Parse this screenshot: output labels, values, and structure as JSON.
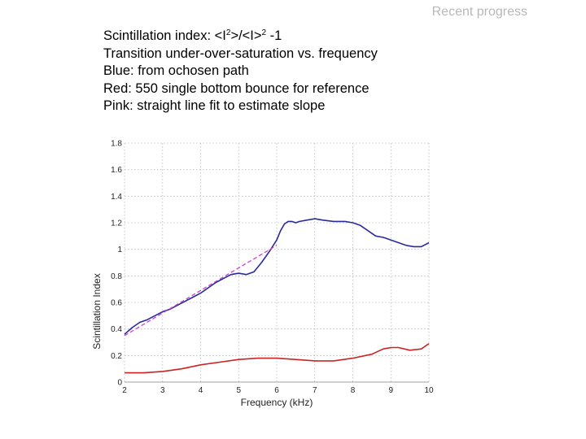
{
  "slide": {
    "title": "Recent progress",
    "lines": {
      "formula_prefix": "Scintillation index:  <I",
      "formula_sup1": "2",
      "formula_mid": ">/<I>",
      "formula_sup2": "2",
      "formula_suffix": " -1",
      "line2": "Transition under-over-saturation vs. frequency",
      "line3": "Blue: from ochosen path",
      "line4": "Red: 550 single bottom bounce for reference",
      "line5": "Pink: straight line fit to estimate slope"
    }
  },
  "chart_data": {
    "type": "line",
    "xlabel": "Frequency (kHz)",
    "ylabel": "Scintillation Index",
    "xlim": [
      2,
      10
    ],
    "ylim": [
      0,
      1.8
    ],
    "xticks": [
      "2",
      "3",
      "4",
      "5",
      "6",
      "7",
      "8",
      "9",
      "10"
    ],
    "yticks": [
      "0",
      "0.2",
      "0.4",
      "0.6",
      "0.8",
      "1",
      "1.2",
      "1.4",
      "1.6",
      "1.8"
    ],
    "grid": true,
    "series": [
      {
        "color": "#2a2a9e",
        "x": [
          2.0,
          2.2,
          2.4,
          2.6,
          2.8,
          3.0,
          3.2,
          3.4,
          3.6,
          3.8,
          4.0,
          4.2,
          4.4,
          4.6,
          4.8,
          5.0,
          5.2,
          5.4,
          5.6,
          5.8,
          6.0,
          6.1,
          6.2,
          6.3,
          6.4,
          6.5,
          6.6,
          6.8,
          7.0,
          7.2,
          7.5,
          7.8,
          8.0,
          8.2,
          8.4,
          8.6,
          8.8,
          9.0,
          9.2,
          9.4,
          9.6,
          9.8,
          10.0
        ],
        "y": [
          0.36,
          0.41,
          0.45,
          0.47,
          0.5,
          0.53,
          0.55,
          0.58,
          0.61,
          0.64,
          0.67,
          0.71,
          0.75,
          0.78,
          0.81,
          0.82,
          0.81,
          0.83,
          0.9,
          0.98,
          1.07,
          1.14,
          1.19,
          1.21,
          1.21,
          1.2,
          1.21,
          1.22,
          1.23,
          1.22,
          1.21,
          1.21,
          1.2,
          1.18,
          1.14,
          1.1,
          1.09,
          1.07,
          1.05,
          1.03,
          1.02,
          1.02,
          1.05
        ]
      },
      {
        "color": "#cc2222",
        "x": [
          2.0,
          2.5,
          3.0,
          3.5,
          4.0,
          4.5,
          5.0,
          5.5,
          6.0,
          6.5,
          7.0,
          7.5,
          8.0,
          8.5,
          8.8,
          9.0,
          9.2,
          9.5,
          9.8,
          10.0
        ],
        "y": [
          0.07,
          0.07,
          0.08,
          0.1,
          0.13,
          0.15,
          0.17,
          0.18,
          0.18,
          0.17,
          0.16,
          0.16,
          0.18,
          0.21,
          0.25,
          0.26,
          0.26,
          0.24,
          0.25,
          0.29
        ]
      },
      {
        "color": "#cc44cc",
        "dashed": true,
        "x": [
          2.0,
          6.0
        ],
        "y": [
          0.35,
          1.03
        ]
      }
    ]
  }
}
